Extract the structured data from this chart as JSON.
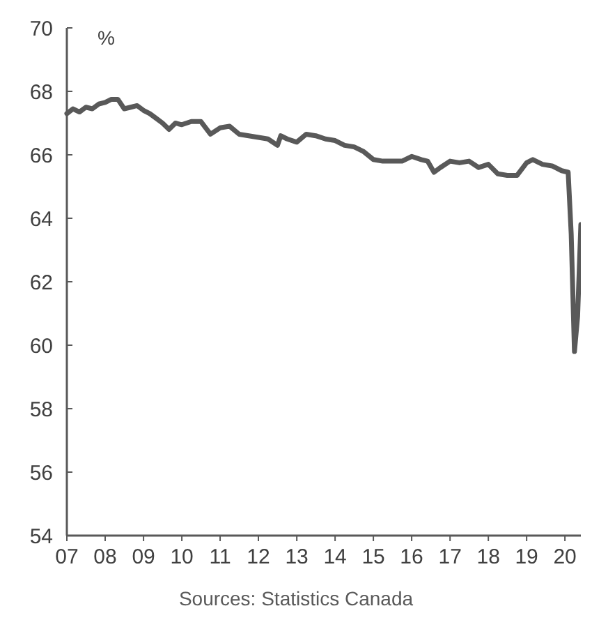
{
  "chart_data": {
    "type": "line",
    "ylabel": "%",
    "annotations": [
      "Sources: Statistics Canada"
    ],
    "xlim": [
      "2007-01",
      "2020-06"
    ],
    "ylim": [
      54,
      70
    ],
    "yticks": [
      54,
      56,
      58,
      60,
      62,
      64,
      66,
      68,
      70
    ],
    "xticks": [
      {
        "value": "2007-01",
        "label": "07"
      },
      {
        "value": "2008-01",
        "label": "08"
      },
      {
        "value": "2009-01",
        "label": "09"
      },
      {
        "value": "2010-01",
        "label": "10"
      },
      {
        "value": "2011-01",
        "label": "11"
      },
      {
        "value": "2012-01",
        "label": "12"
      },
      {
        "value": "2013-01",
        "label": "13"
      },
      {
        "value": "2014-01",
        "label": "14"
      },
      {
        "value": "2015-01",
        "label": "15"
      },
      {
        "value": "2016-01",
        "label": "16"
      },
      {
        "value": "2017-01",
        "label": "17"
      },
      {
        "value": "2018-01",
        "label": "18"
      },
      {
        "value": "2019-01",
        "label": "19"
      },
      {
        "value": "2020-01",
        "label": "20"
      }
    ],
    "x": [
      "2007-01",
      "2007-03",
      "2007-05",
      "2007-07",
      "2007-09",
      "2007-11",
      "2008-01",
      "2008-03",
      "2008-05",
      "2008-07",
      "2008-09",
      "2008-11",
      "2009-01",
      "2009-03",
      "2009-05",
      "2009-07",
      "2009-09",
      "2009-11",
      "2010-01",
      "2010-04",
      "2010-07",
      "2010-10",
      "2011-01",
      "2011-04",
      "2011-07",
      "2011-10",
      "2012-01",
      "2012-04",
      "2012-07",
      "2012-08",
      "2012-10",
      "2013-01",
      "2013-04",
      "2013-07",
      "2013-10",
      "2014-01",
      "2014-04",
      "2014-07",
      "2014-10",
      "2015-01",
      "2015-04",
      "2015-07",
      "2015-10",
      "2016-01",
      "2016-04",
      "2016-06",
      "2016-08",
      "2016-10",
      "2017-01",
      "2017-04",
      "2017-07",
      "2017-10",
      "2018-01",
      "2018-04",
      "2018-07",
      "2018-10",
      "2019-01",
      "2019-03",
      "2019-06",
      "2019-09",
      "2019-12",
      "2020-02",
      "2020-03",
      "2020-04",
      "2020-05",
      "2020-06"
    ],
    "series": [
      {
        "color": "#595959",
        "values": [
          67.3,
          67.45,
          67.35,
          67.5,
          67.45,
          67.6,
          67.65,
          67.75,
          67.75,
          67.45,
          67.5,
          67.55,
          67.4,
          67.3,
          67.15,
          67.0,
          66.8,
          67.0,
          66.95,
          67.05,
          67.05,
          66.65,
          66.85,
          66.9,
          66.65,
          66.6,
          66.55,
          66.5,
          66.3,
          66.6,
          66.5,
          66.4,
          66.65,
          66.6,
          66.5,
          66.45,
          66.3,
          66.25,
          66.1,
          65.85,
          65.8,
          65.8,
          65.8,
          65.95,
          65.85,
          65.8,
          65.45,
          65.6,
          65.8,
          65.75,
          65.8,
          65.6,
          65.7,
          65.4,
          65.35,
          65.35,
          65.75,
          65.85,
          65.7,
          65.65,
          65.5,
          65.45,
          63.5,
          59.8,
          60.9,
          63.8
        ]
      }
    ]
  }
}
